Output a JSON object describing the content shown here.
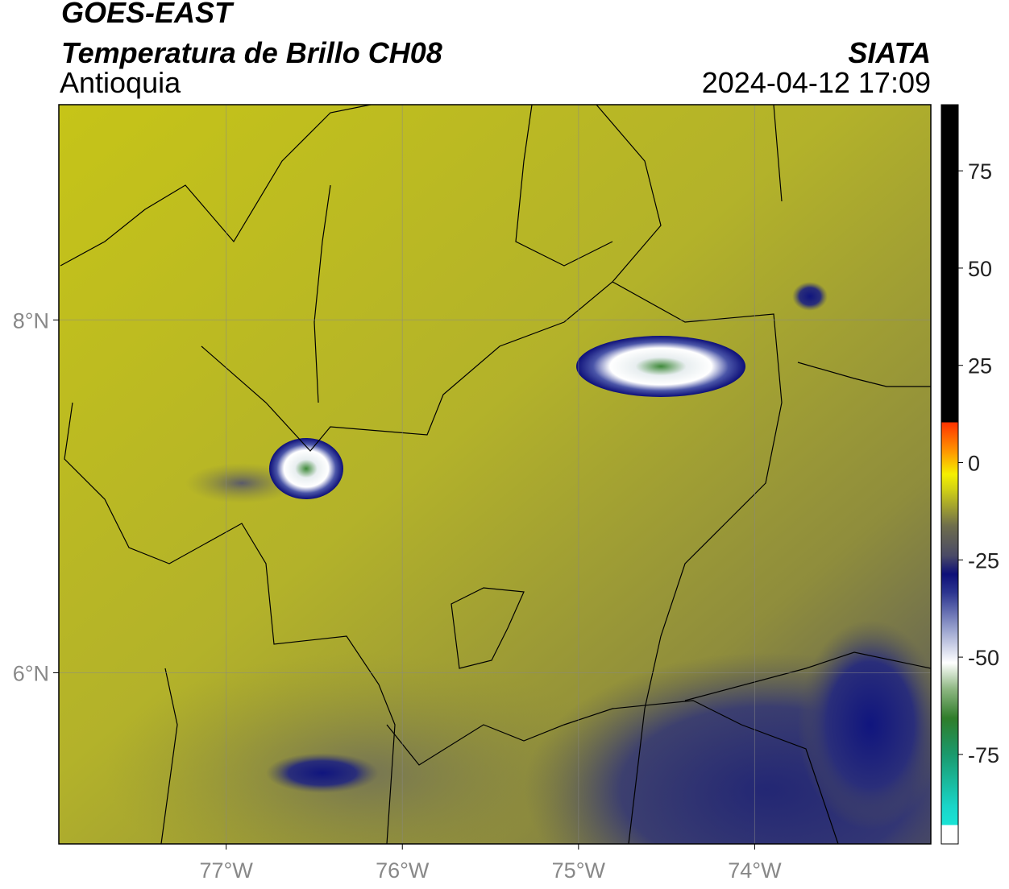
{
  "header": {
    "title": "GOES-EAST",
    "subtitle": "Temperatura de Brillo CH08",
    "region": "Antioquia",
    "organization": "SIATA",
    "datetime": "2024-04-12 17:09"
  },
  "map": {
    "lon_lim": [
      -77.95,
      -73.0
    ],
    "lat_lim": [
      5.03,
      9.22
    ],
    "lon_ticks": [
      {
        "value": -77,
        "label": "77°W"
      },
      {
        "value": -76,
        "label": "76°W"
      },
      {
        "value": -75,
        "label": "75°W"
      },
      {
        "value": -74,
        "label": "74°W"
      }
    ],
    "lat_ticks": [
      {
        "value": 8,
        "label": "8°N"
      },
      {
        "value": 6,
        "label": "6°N"
      }
    ]
  },
  "colorbar": {
    "lim": [
      -98,
      92
    ],
    "ticks": [
      75,
      50,
      25,
      0,
      -25,
      -50,
      -75
    ]
  }
}
